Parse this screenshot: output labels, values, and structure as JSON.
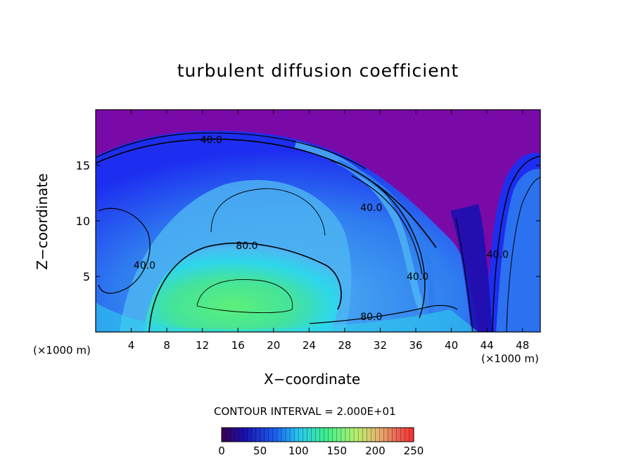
{
  "chart_data": {
    "type": "heatmap",
    "title": "turbulent diffusion coefficient",
    "xlabel": "X−coordinate",
    "ylabel": "Z−coordinate",
    "x_unit": "(×1000 m)",
    "xlim": [
      0,
      50
    ],
    "ylim": [
      0,
      20
    ],
    "x_ticks": [
      4,
      8,
      12,
      16,
      20,
      24,
      28,
      32,
      36,
      40,
      44,
      48
    ],
    "y_ticks": [
      5,
      10,
      15
    ],
    "contour_labels": [
      {
        "text": "40.0",
        "x": 13,
        "z": 17.3
      },
      {
        "text": "80.0",
        "x": 17,
        "z": 7.8
      },
      {
        "text": "40.0",
        "x": 31,
        "z": 11.2
      },
      {
        "text": "40.0",
        "x": 5.5,
        "z": 6.0
      },
      {
        "text": "40.0",
        "x": 36.2,
        "z": 5.0
      },
      {
        "text": "80.0",
        "x": 31,
        "z": 1.4
      },
      {
        "text": "40.0",
        "x": 45.2,
        "z": 7.0
      }
    ],
    "contour_interval_text": "CONTOUR INTERVAL = 2.000E+01",
    "colorbar": {
      "min": 0,
      "max": 250,
      "tick_values": [
        0,
        50,
        100,
        150,
        200,
        250
      ]
    }
  },
  "colors": {
    "background_field": "#7a0aa8",
    "outer_blue": "#1d2ef0",
    "mid_blue": "#2f7cf0",
    "light_blue": "#4fb6f2",
    "cyan": "#2ed6ec",
    "core_green": "#44e39b",
    "bright_green": "#5cf07a"
  }
}
